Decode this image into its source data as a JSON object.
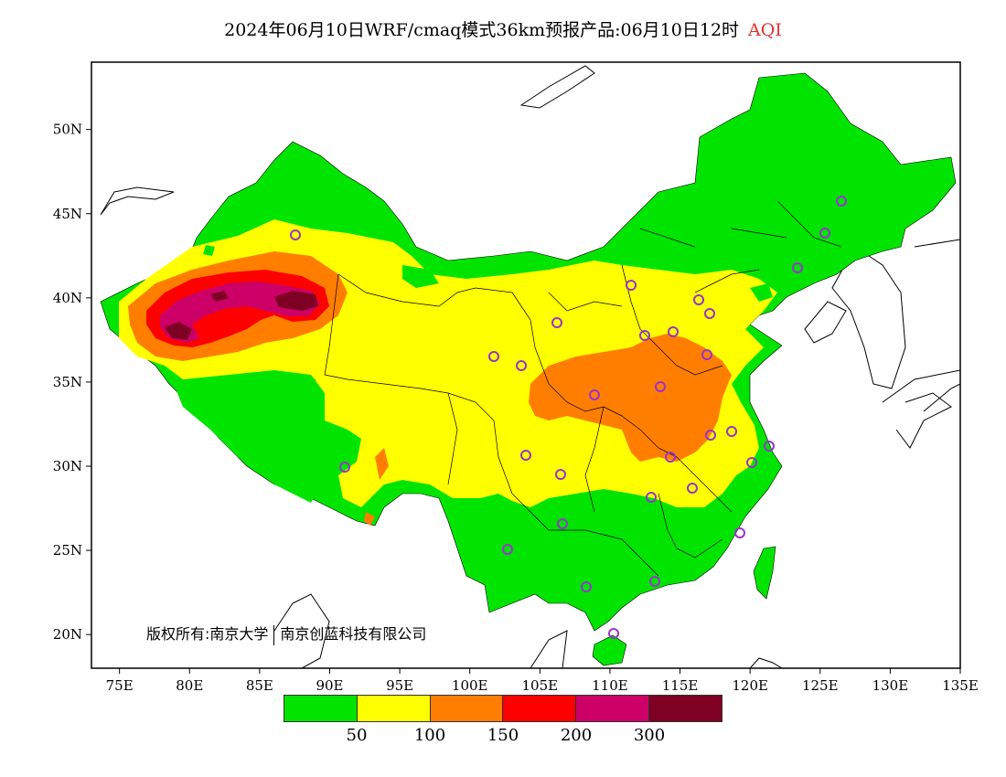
{
  "title": {
    "main": "2024年06月10日WRF/cmaq模式36km预报产品:06月10日12时",
    "variable": "AQI"
  },
  "map": {
    "type": "aqi-forecast-map",
    "region": "China",
    "lat_labels": [
      "50N",
      "45N",
      "40N",
      "35N",
      "30N",
      "25N",
      "20N"
    ],
    "lat_values": [
      50,
      45,
      40,
      35,
      30,
      25,
      20
    ],
    "lon_labels": [
      "75E",
      "80E",
      "85E",
      "90E",
      "95E",
      "100E",
      "105E",
      "110E",
      "115E",
      "120E",
      "125E",
      "130E",
      "135E"
    ],
    "lon_values": [
      75,
      80,
      85,
      90,
      95,
      100,
      105,
      110,
      115,
      120,
      125,
      130,
      135
    ],
    "lat_range": [
      18,
      54
    ],
    "lon_range": [
      73,
      135
    ],
    "copyright": "版权所有:南京大学",
    "copyright_company": "南京创蓝科技有限公司"
  },
  "legend": {
    "colors": [
      "#00e400",
      "#ffff00",
      "#ff7e00",
      "#ff0000",
      "#cc0066",
      "#7e0023"
    ],
    "ticks": [
      "50",
      "100",
      "150",
      "200",
      "300"
    ]
  },
  "colors": {
    "good": "#00e400",
    "moderate": "#ffff00",
    "usg": "#ff7e00",
    "unhealthy": "#ff0000",
    "very_unhealthy": "#cc0066",
    "hazardous": "#7e0023",
    "station_marker": "#9933cc"
  }
}
